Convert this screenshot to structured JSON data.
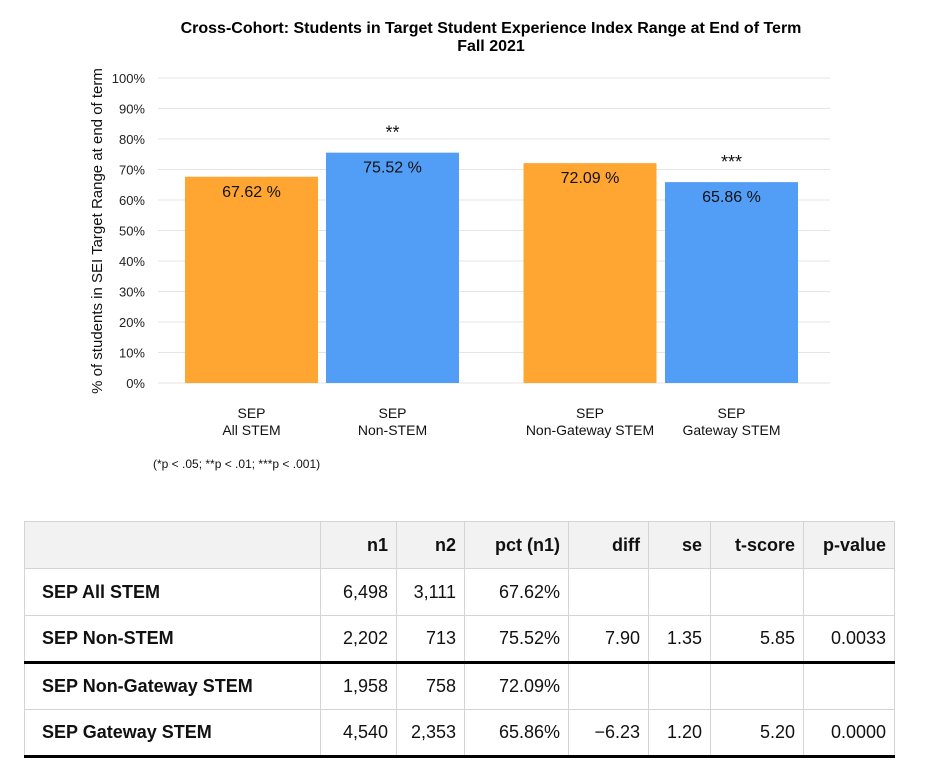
{
  "chart_data": {
    "type": "bar",
    "title": "Cross-Cohort: Students in Target Student Experience Index Range at End of Term",
    "subtitle": "Fall 2021",
    "ylabel": "% of students in SEI Target Range at end of term",
    "xlabel": "",
    "ylim": [
      0,
      100
    ],
    "yticks": [
      "0%",
      "10%",
      "20%",
      "30%",
      "40%",
      "50%",
      "60%",
      "70%",
      "80%",
      "90%",
      "100%"
    ],
    "grid": true,
    "bars": [
      {
        "label_line1": "SEP",
        "label_line2": "All STEM",
        "value": 67.62,
        "value_label": "67.62 %",
        "sig": "",
        "color": "#ffa531"
      },
      {
        "label_line1": "SEP",
        "label_line2": "Non-STEM",
        "value": 75.52,
        "value_label": "75.52 %",
        "sig": "**",
        "color": "#529df6"
      },
      {
        "label_line1": "SEP",
        "label_line2": "Non-Gateway STEM",
        "value": 72.09,
        "value_label": "72.09 %",
        "sig": "",
        "color": "#ffa531"
      },
      {
        "label_line1": "SEP",
        "label_line2": "Gateway STEM",
        "value": 65.86,
        "value_label": "65.86 %",
        "sig": "***",
        "color": "#529df6"
      }
    ],
    "note": "(*p < .05; **p < .01; ***p < .001)"
  },
  "table": {
    "headers": [
      "",
      "n1",
      "n2",
      "pct (n1)",
      "diff",
      "se",
      "t-score",
      "p-value"
    ],
    "rows": [
      [
        "SEP All STEM",
        "6,498",
        "3,111",
        "67.62%",
        "",
        "",
        "",
        ""
      ],
      [
        "SEP Non-STEM",
        "2,202",
        "713",
        "75.52%",
        "7.90",
        "1.35",
        "5.85",
        "0.0033"
      ],
      [
        "SEP Non-Gateway STEM",
        "1,958",
        "758",
        "72.09%",
        "",
        "",
        "",
        ""
      ],
      [
        "SEP Gateway STEM",
        "4,540",
        "2,353",
        "65.86%",
        "−6.23",
        "1.20",
        "5.20",
        "0.0000"
      ]
    ]
  }
}
